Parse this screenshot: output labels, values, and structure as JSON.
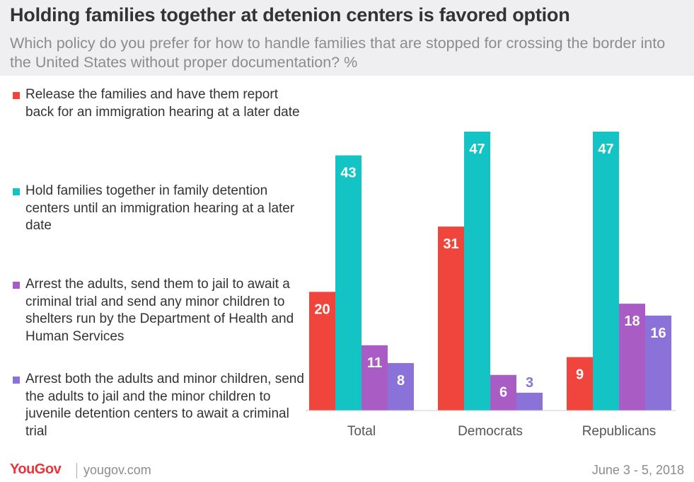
{
  "header": {
    "title": "Holding families together at detenion centers is favored option",
    "subtitle": "Which policy do you prefer for how to handle families that are stopped for crossing the border into the United States without proper documentation? %"
  },
  "footer": {
    "logo": "YouGov",
    "site": "yougov.com",
    "date": "June 3 - 5, 2018"
  },
  "chart_data": {
    "type": "bar",
    "categories": [
      "Total",
      "Democrats",
      "Republicans"
    ],
    "series": [
      {
        "name": "Release the families and have them report back for an immigration hearing at a later date",
        "color": "#f0453d",
        "values": [
          20,
          31,
          9
        ]
      },
      {
        "name": "Hold families together in family detention centers until an immigration hearing at a later date",
        "color": "#14c4c4",
        "values": [
          43,
          47,
          47
        ]
      },
      {
        "name": "Arrest the adults, send them to jail to await a criminal trial and send any minor children to shelters run by the Department of Health and Human Services",
        "color": "#a95cc4",
        "values": [
          11,
          6,
          18
        ]
      },
      {
        "name": "Arrest both the adults and minor children, send the adults to jail and the minor children to juvenile detention centers to await a criminal trial",
        "color": "#8b72d8",
        "values": [
          8,
          3,
          16
        ]
      }
    ],
    "title": "Holding families together at detenion centers is favored option",
    "xlabel": "",
    "ylabel": "",
    "ylim": [
      0,
      47
    ],
    "grid": false,
    "legend": "left"
  }
}
